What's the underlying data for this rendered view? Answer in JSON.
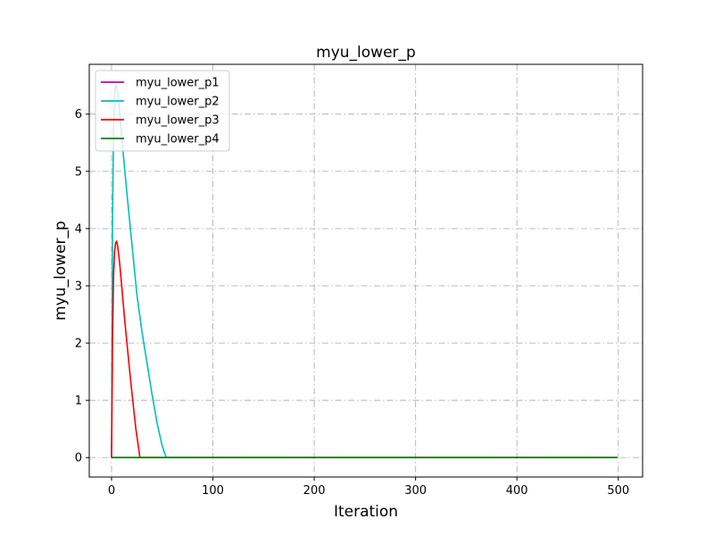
{
  "chart_data": {
    "type": "line",
    "title": "myu_lower_p",
    "xlabel": "Iteration",
    "ylabel": "myu_lower_p",
    "xlim": [
      -22,
      524
    ],
    "ylim": [
      -0.34,
      6.87
    ],
    "xticks": [
      0,
      100,
      200,
      300,
      400,
      500
    ],
    "yticks": [
      0,
      1,
      2,
      3,
      4,
      5,
      6
    ],
    "grid": true,
    "grid_style": "dash-dot",
    "legend_position": "upper-left",
    "series": [
      {
        "name": "myu_lower_p1",
        "color": "#bf00bf",
        "x": [
          0,
          499
        ],
        "y": [
          0,
          0
        ]
      },
      {
        "name": "myu_lower_p2",
        "color": "#00bfbf",
        "x": [
          0,
          1,
          2,
          3,
          4,
          5,
          6,
          8,
          10,
          15,
          20,
          25,
          30,
          35,
          40,
          45,
          50,
          54,
          100,
          200,
          300,
          400,
          499
        ],
        "y": [
          0,
          4.2,
          5.7,
          6.3,
          6.5,
          6.5,
          6.4,
          6.05,
          5.6,
          4.65,
          3.75,
          2.85,
          2.2,
          1.65,
          1.1,
          0.6,
          0.2,
          0,
          0,
          0,
          0,
          0,
          0
        ]
      },
      {
        "name": "myu_lower_p3",
        "color": "#ff0000",
        "x": [
          0,
          1,
          2,
          3,
          4,
          5,
          6,
          8,
          10,
          13,
          16,
          20,
          24,
          28,
          100,
          200,
          300,
          400,
          499
        ],
        "y": [
          0,
          2.1,
          3.2,
          3.6,
          3.75,
          3.78,
          3.7,
          3.4,
          3.0,
          2.4,
          1.85,
          1.15,
          0.5,
          0,
          0,
          0,
          0,
          0,
          0
        ]
      },
      {
        "name": "myu_lower_p4",
        "color": "#008000",
        "x": [
          0,
          499
        ],
        "y": [
          0,
          0
        ]
      }
    ]
  }
}
